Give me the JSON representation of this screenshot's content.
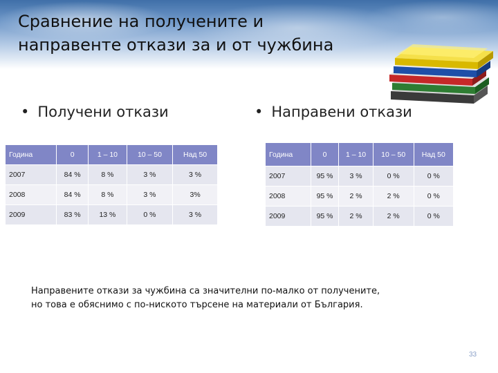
{
  "slide": {
    "title_line1": "Сравнение на получените и",
    "title_line2": "направенте откази за и от чужбина",
    "bullet_bullet_char": "•",
    "bullet_received": "Получени откази",
    "bullet_made": "Направени откази",
    "note_line1": "Направените откази за чужбина са значителни по-малко от получените,",
    "note_line2": "но това е обяснимо с по-ниското търсене на материали от България.",
    "page_number": "33"
  },
  "colors": {
    "table_header": "#8086c6",
    "table_row": "#e5e6ef",
    "table_row_alt": "#f1f1f6",
    "page_number": "#8aa0c8"
  },
  "received_table": {
    "headers": [
      "Година",
      "0",
      "1 – 10",
      "10 – 50",
      "Над 50"
    ],
    "rows": [
      [
        "2007",
        "84 %",
        "8 %",
        "3 %",
        "3 %"
      ],
      [
        "2008",
        "84 %",
        "8 %",
        "3 %",
        "3%"
      ],
      [
        "2009",
        "83 %",
        "13 %",
        "0 %",
        "3 %"
      ]
    ]
  },
  "made_table": {
    "headers": [
      "Година",
      "0",
      "1 – 10",
      "10 – 50",
      "Над 50"
    ],
    "rows": [
      [
        "2007",
        "95 %",
        "3 %",
        "0 %",
        "0 %"
      ],
      [
        "2008",
        "95 %",
        "2 %",
        "2 %",
        "0 %"
      ],
      [
        "2009",
        "95 %",
        "2 %",
        "2 %",
        "0 %"
      ]
    ]
  },
  "icons": {
    "books": "stacked-books-icon"
  }
}
